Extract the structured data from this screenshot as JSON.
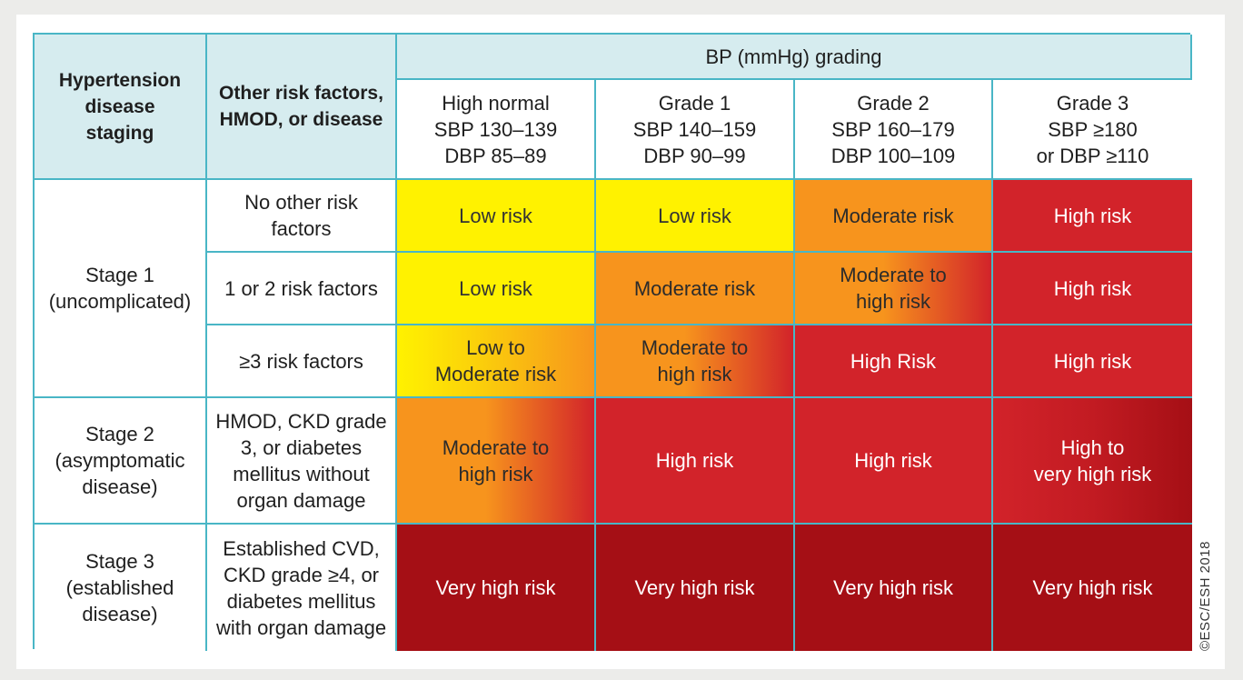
{
  "header": {
    "staging": "Hypertension\ndisease\nstaging",
    "other": "Other risk factors,\nHMOD, or disease",
    "bp_title": "BP (mmHg) grading",
    "grades": [
      "High normal\nSBP 130–139\nDBP 85–89",
      "Grade 1\nSBP 140–159\nDBP 90–99",
      "Grade 2\nSBP 160–179\nDBP 100–109",
      "Grade 3\nSBP ≥180\nor DBP ≥110"
    ]
  },
  "stages": [
    {
      "label": "Stage 1\n(uncomplicated)"
    },
    {
      "label": "Stage 2\n(asymptomatic\ndisease)"
    },
    {
      "label": "Stage 3\n(established\ndisease)"
    }
  ],
  "rows": [
    {
      "factor": "No other risk\nfactors",
      "cells": [
        "Low risk",
        "Low risk",
        "Moderate risk",
        "High risk"
      ]
    },
    {
      "factor": "1 or 2 risk factors",
      "cells": [
        "Low risk",
        "Moderate risk",
        "Moderate to\nhigh risk",
        "High risk"
      ]
    },
    {
      "factor": "≥3 risk factors",
      "cells": [
        "Low to\nModerate risk",
        "Moderate to\nhigh risk",
        "High Risk",
        "High risk"
      ]
    },
    {
      "factor": "HMOD, CKD grade\n3, or diabetes\nmellitus without\norgan damage",
      "cells": [
        "Moderate to\nhigh risk",
        "High risk",
        "High risk",
        "High to\nvery high risk"
      ]
    },
    {
      "factor": "Established CVD,\nCKD grade ≥4, or\ndiabetes mellitus\nwith organ damage",
      "cells": [
        "Very high risk",
        "Very high risk",
        "Very high risk",
        "Very high risk"
      ]
    }
  ],
  "colors": {
    "border": "#49b6c6",
    "header_bg": "#d6ecef",
    "low": "#fff200",
    "moderate": "#f7941d",
    "high": "#d2232a",
    "very_high": "#a50f15"
  },
  "copyright": "©ESC/ESH 2018"
}
